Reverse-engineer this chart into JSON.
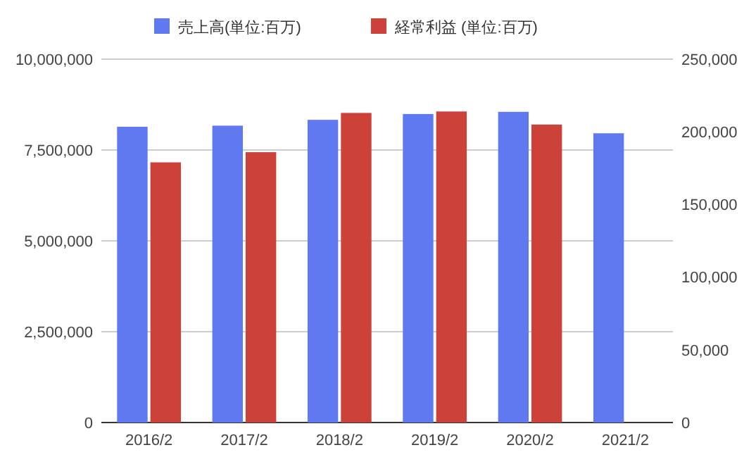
{
  "chart_data": {
    "type": "bar",
    "categories": [
      "2016/2",
      "2017/2",
      "2018/2",
      "2019/2",
      "2020/2",
      "2021/2"
    ],
    "series": [
      {
        "name": "売上高(単位:百万)",
        "color": "#6078f0",
        "values": [
          8140000,
          8170000,
          8330000,
          8490000,
          8550000,
          7960000
        ]
      },
      {
        "name": "経常利益 (単位:百万)",
        "color": "#cc4138",
        "axis": "y2",
        "values": [
          179000,
          186000,
          213000,
          214000,
          205000,
          null
        ]
      }
    ],
    "ylim": [
      0,
      10000000
    ],
    "yticks": [
      {
        "value": 0,
        "label": "0"
      },
      {
        "value": 2500000,
        "label": "2,500,000"
      },
      {
        "value": 5000000,
        "label": "5,000,000"
      },
      {
        "value": 7500000,
        "label": "7,500,000"
      },
      {
        "value": 10000000,
        "label": "10,000,000"
      }
    ],
    "y2lim": [
      0,
      250000
    ],
    "y2ticks": [
      {
        "value": 0,
        "label": "0"
      },
      {
        "value": 50000,
        "label": "50,000"
      },
      {
        "value": 100000,
        "label": "100,000"
      },
      {
        "value": 150000,
        "label": "150,000"
      },
      {
        "value": 200000,
        "label": "200,000"
      },
      {
        "value": 250000,
        "label": "250,000"
      }
    ],
    "grid": "y",
    "legend": "top"
  }
}
